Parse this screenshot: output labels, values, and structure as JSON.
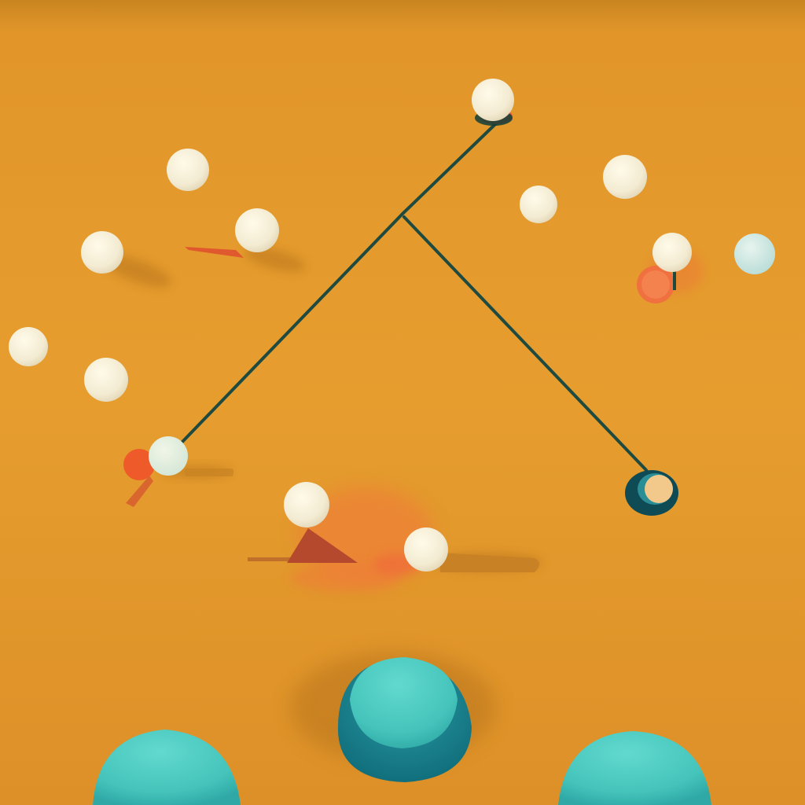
{
  "scene": {
    "description": "",
    "colors": {
      "background": "#E59A2C",
      "background_dark": "#C97E1E",
      "line": "#1F4A3E",
      "ball_white": "#F4EED9",
      "ball_shadow": "#B0701A",
      "accent_orange": "#F0663A",
      "accent_red": "#C8583A",
      "teal_light": "#4FCFC4",
      "teal_dark": "#177C86",
      "ring_dark": "#0F4B55"
    },
    "objects": {
      "white_balls": 14,
      "teal_domes": 3,
      "rope_segments": 3
    }
  }
}
